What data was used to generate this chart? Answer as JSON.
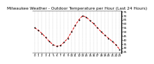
{
  "title": "Milwaukee Weather - Outdoor Temperature per Hour (Last 24 Hours)",
  "hours": [
    0,
    1,
    2,
    3,
    4,
    5,
    6,
    7,
    8,
    9,
    10,
    11,
    12,
    13,
    14,
    15,
    16,
    17,
    18,
    19,
    20,
    21,
    22,
    23
  ],
  "temps": [
    55,
    52,
    48,
    43,
    38,
    34,
    32,
    33,
    37,
    42,
    50,
    58,
    65,
    70,
    68,
    64,
    60,
    55,
    50,
    46,
    42,
    38,
    34,
    28
  ],
  "line_color": "#dd0000",
  "marker_color": "#000000",
  "bg_color": "#ffffff",
  "grid_color": "#999999",
  "ylim": [
    24,
    76
  ],
  "yticks": [
    25,
    30,
    35,
    40,
    45,
    50,
    55,
    60,
    65,
    70,
    75
  ],
  "ytick_labels": [
    "25",
    "30",
    "35",
    "40",
    "45",
    "50",
    "55",
    "60",
    "65",
    "70",
    "75"
  ],
  "xtick_labels": [
    "0",
    "1",
    "2",
    "3",
    "4",
    "5",
    "6",
    "7",
    "8",
    "9",
    "10",
    "11",
    "12",
    "13",
    "14",
    "15",
    "16",
    "17",
    "18",
    "19",
    "20",
    "21",
    "22",
    "23"
  ],
  "title_fontsize": 4.2,
  "tick_fontsize": 3.0,
  "linewidth": 0.7,
  "markersize": 1.8
}
